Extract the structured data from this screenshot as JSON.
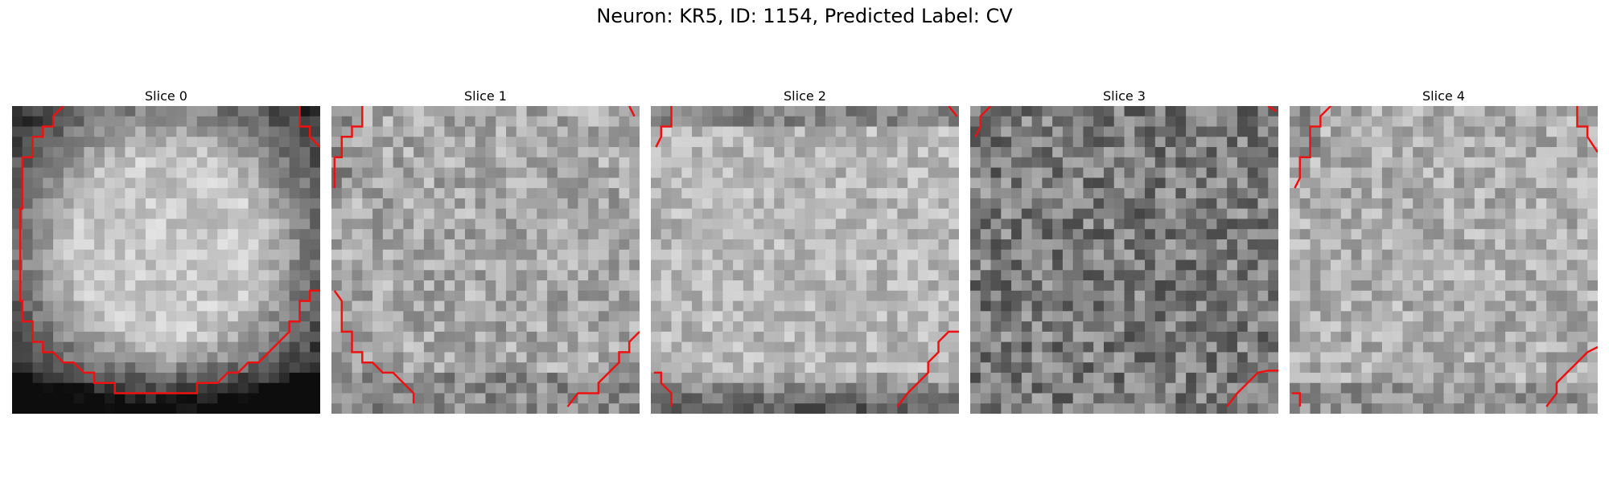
{
  "figure": {
    "title": "Neuron: KR5, ID: 1154, Predicted Label: CV"
  },
  "colors": {
    "contour": "#ee1111",
    "colormap": "grayscale"
  },
  "slices": [
    {
      "label": "Slice 0",
      "brightness": "bright circular soma with dark lower edge",
      "contour_corners": [
        "top-left",
        "left",
        "bottom",
        "right",
        "top-right"
      ]
    },
    {
      "label": "Slice 1",
      "brightness": "mid-bright",
      "contour_corners": [
        "top-left",
        "bottom-left",
        "bottom-right",
        "top-right"
      ]
    },
    {
      "label": "Slice 2",
      "brightness": "bright with dark bottom",
      "contour_corners": [
        "top-left",
        "bottom-left",
        "bottom-right",
        "top-right"
      ]
    },
    {
      "label": "Slice 3",
      "brightness": "noisy dark",
      "contour_corners": [
        "top-left",
        "bottom-right",
        "top-right"
      ]
    },
    {
      "label": "Slice 4",
      "brightness": "mid-bright",
      "contour_corners": [
        "top-left",
        "bottom-left",
        "bottom-right",
        "top-right"
      ]
    }
  ]
}
